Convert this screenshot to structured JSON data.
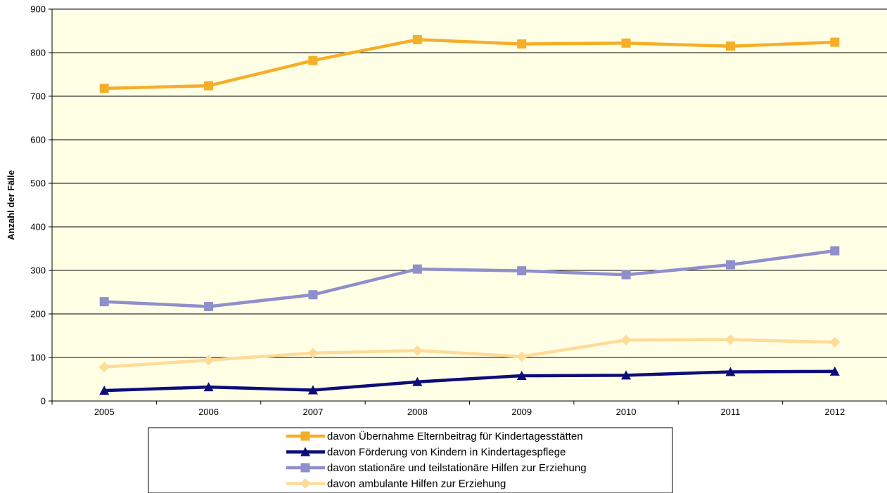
{
  "chart_data": {
    "type": "line",
    "title": "",
    "xlabel": "",
    "ylabel": "Anzahl der Fälle",
    "categories": [
      "2005",
      "2006",
      "2007",
      "2008",
      "2009",
      "2010",
      "2011",
      "2012"
    ],
    "ylim": [
      0,
      900
    ],
    "yticks": [
      0,
      100,
      200,
      300,
      400,
      500,
      600,
      700,
      800,
      900
    ],
    "grid": true,
    "legend_position": "bottom",
    "plot_background": "#FFFFE6",
    "series": [
      {
        "name": "davon Übernahme Elternbeitrag für Kindertagesstätten",
        "values": [
          718,
          724,
          782,
          830,
          820,
          822,
          815,
          824
        ],
        "color": "#F5AE28",
        "marker": "square"
      },
      {
        "name": "davon Förderung von Kindern in Kindertagespflege",
        "values": [
          24,
          32,
          25,
          44,
          58,
          59,
          67,
          68
        ],
        "color": "#0D0D7A",
        "marker": "triangle"
      },
      {
        "name": "davon stationäre und teilstationäre Hilfen zur Erziehung",
        "values": [
          228,
          217,
          244,
          303,
          299,
          290,
          313,
          345
        ],
        "color": "#8F8FCC",
        "marker": "square"
      },
      {
        "name": "davon ambulante Hilfen zur Erziehung",
        "values": [
          78,
          94,
          110,
          116,
          102,
          140,
          141,
          135
        ],
        "color": "#FFDB99",
        "marker": "diamond"
      }
    ]
  }
}
